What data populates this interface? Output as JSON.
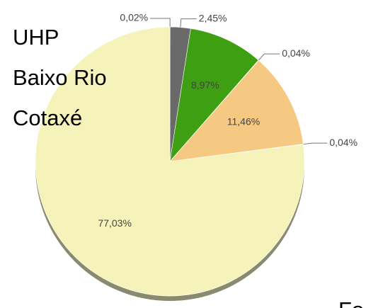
{
  "chart_data": {
    "type": "pie",
    "title_lines": [
      "UHP",
      "Baixo Rio",
      "Cotaxé"
    ],
    "footer_text": "Fo",
    "values": [
      0.02,
      2.45,
      8.97,
      0.04,
      11.46,
      0.04,
      77.03
    ],
    "value_labels": [
      "0,02%",
      "2,45%",
      "8,97%",
      "0,04%",
      "11,46%",
      "0,04%",
      "77,03%"
    ],
    "colors": [
      "#3b5bb0",
      "#6a6a6a",
      "#3e9f12",
      "#d9a84a",
      "#f6c982",
      "#c8c48a",
      "#f6f3ba"
    ]
  }
}
